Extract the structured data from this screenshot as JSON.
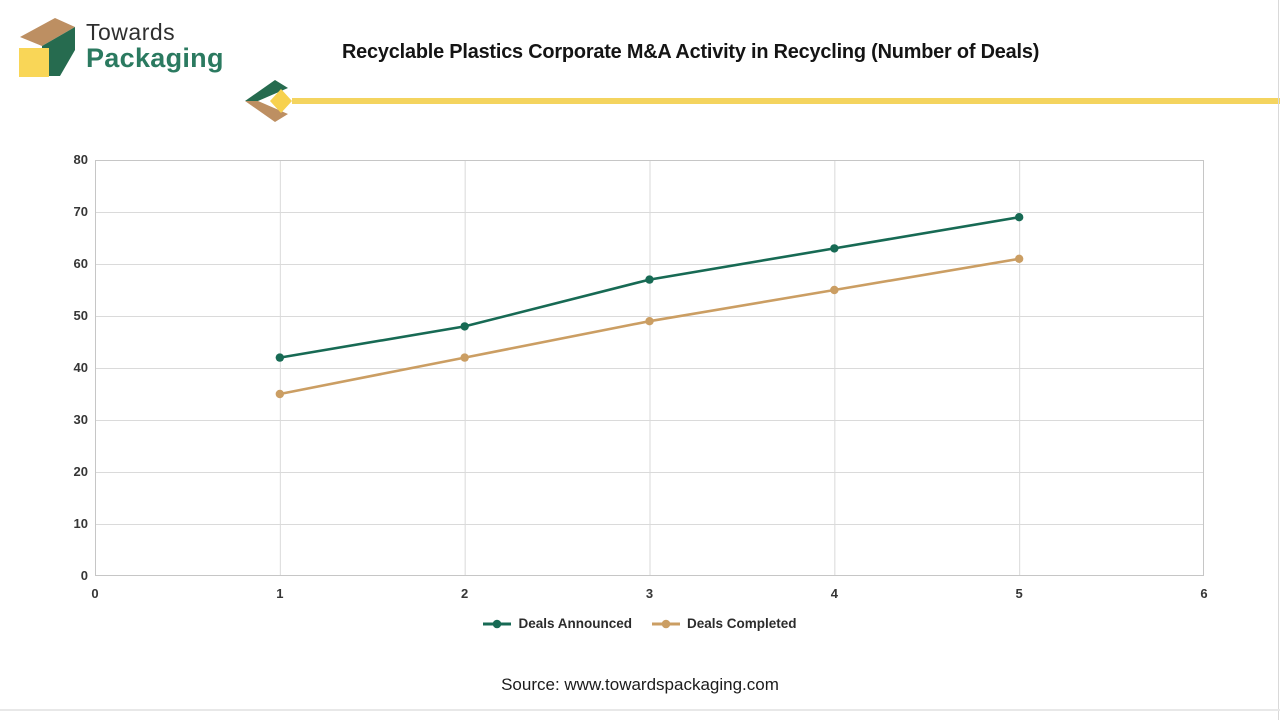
{
  "logo": {
    "line1": "Towards",
    "line2": "Packaging"
  },
  "source": "Source: www.towardspackaging.com",
  "colors": {
    "brand_green": "#266b4f",
    "brand_green_text": "#2b7a60",
    "brand_tan": "#bd8f62",
    "brand_yellow": "#f9d657",
    "divider_yellow": "#f4d45f",
    "divider_diamond": "#f7d14e",
    "series_announced": "#176a54",
    "series_completed": "#cb9e63",
    "grid": "#dadada",
    "plot_border": "#c6c6c6"
  },
  "chart_data": {
    "type": "line",
    "title": "Recyclable Plastics Corporate M&A Activity in Recycling (Number of Deals)",
    "x": [
      1,
      2,
      3,
      4,
      5
    ],
    "series": [
      {
        "name": "Deals Announced",
        "values": [
          42,
          48,
          57,
          63,
          69
        ],
        "color": "#176a54"
      },
      {
        "name": "Deals Completed",
        "values": [
          35,
          42,
          49,
          55,
          61
        ],
        "color": "#cb9e63"
      }
    ],
    "xlabel": "",
    "ylabel": "",
    "xlim": [
      0,
      6
    ],
    "ylim": [
      0,
      80
    ],
    "xticks": [
      0,
      1,
      2,
      3,
      4,
      5,
      6
    ],
    "yticks": [
      0,
      10,
      20,
      30,
      40,
      50,
      60,
      70,
      80
    ],
    "grid": true,
    "legend_position": "bottom"
  }
}
